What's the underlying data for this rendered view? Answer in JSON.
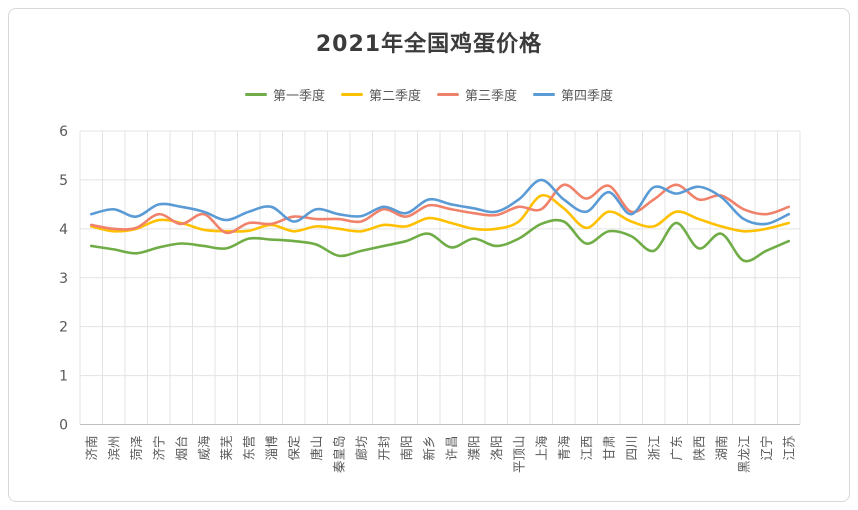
{
  "window": {
    "background": "#ffffff",
    "border_color": "#d8d8d8"
  },
  "styles": {
    "title_color": "#3b3b3b",
    "axis_text_color": "#595959",
    "grid_color": "#e3e3e3",
    "axis_line_color": "#bfbfbf"
  },
  "chart_data": {
    "type": "line",
    "title": "2021年全国鸡蛋价格",
    "xlabel": "",
    "ylabel": "",
    "ylim": [
      0,
      6
    ],
    "ytick_step": 1,
    "grid": true,
    "legend_position": "top",
    "x_label_rotation": -90,
    "line_smoothing": true,
    "categories": [
      "济南",
      "滨州",
      "菏泽",
      "济宁",
      "烟台",
      "威海",
      "莱芜",
      "东营",
      "淄博",
      "保定",
      "唐山",
      "秦皇岛",
      "廊坊",
      "开封",
      "南阳",
      "新乡",
      "许昌",
      "濮阳",
      "洛阳",
      "平顶山",
      "上海",
      "青海",
      "江西",
      "甘肃",
      "四川",
      "浙江",
      "广东",
      "陕西",
      "湖南",
      "黑龙江",
      "辽宁",
      "江苏"
    ],
    "series": [
      {
        "name": "第一季度",
        "color": "#70AD47",
        "values": [
          3.65,
          3.58,
          3.5,
          3.62,
          3.7,
          3.65,
          3.6,
          3.8,
          3.78,
          3.75,
          3.68,
          3.45,
          3.55,
          3.65,
          3.75,
          3.9,
          3.62,
          3.8,
          3.65,
          3.8,
          4.1,
          4.15,
          3.7,
          3.95,
          3.85,
          3.55,
          4.12,
          3.6,
          3.9,
          3.35,
          3.55,
          3.75
        ]
      },
      {
        "name": "第二季度",
        "color": "#FFC000",
        "values": [
          4.05,
          3.95,
          4.0,
          4.18,
          4.12,
          3.98,
          3.95,
          3.96,
          4.08,
          3.95,
          4.05,
          4.0,
          3.95,
          4.08,
          4.05,
          4.22,
          4.12,
          4.0,
          4.0,
          4.15,
          4.68,
          4.42,
          4.02,
          4.35,
          4.15,
          4.05,
          4.35,
          4.2,
          4.05,
          3.95,
          4.0,
          4.12
        ]
      },
      {
        "name": "第三季度",
        "color": "#F0826B",
        "values": [
          4.08,
          4.0,
          4.02,
          4.3,
          4.1,
          4.3,
          3.92,
          4.12,
          4.1,
          4.25,
          4.2,
          4.2,
          4.15,
          4.4,
          4.25,
          4.48,
          4.4,
          4.32,
          4.28,
          4.45,
          4.4,
          4.9,
          4.62,
          4.88,
          4.35,
          4.6,
          4.9,
          4.6,
          4.68,
          4.4,
          4.3,
          4.45
        ]
      },
      {
        "name": "第四季度",
        "color": "#5B9BD5",
        "values": [
          4.3,
          4.4,
          4.25,
          4.5,
          4.45,
          4.35,
          4.18,
          4.35,
          4.45,
          4.15,
          4.4,
          4.3,
          4.26,
          4.45,
          4.32,
          4.6,
          4.5,
          4.42,
          4.35,
          4.6,
          5.0,
          4.6,
          4.35,
          4.75,
          4.3,
          4.85,
          4.72,
          4.86,
          4.65,
          4.2,
          4.1,
          4.3
        ]
      }
    ]
  }
}
